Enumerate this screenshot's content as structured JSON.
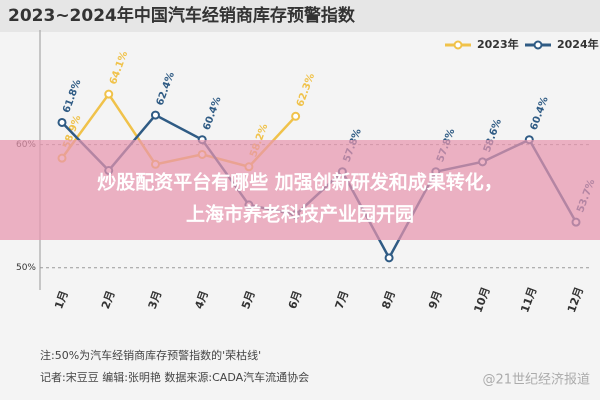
{
  "chart_data": {
    "type": "line",
    "title": "2023~2024年中国汽车经销商库存预警指数",
    "categories": [
      "1月",
      "2月",
      "3月",
      "4月",
      "5月",
      "6月",
      "7月",
      "8月",
      "9月",
      "10月",
      "11月",
      "12月"
    ],
    "series": [
      {
        "name": "2023年",
        "color": "#f0c24a",
        "values": [
          58.9,
          64.1,
          58.4,
          59.2,
          58.2,
          62.3,
          null,
          null,
          null,
          null,
          null,
          null
        ],
        "value_labels": [
          "58.9%",
          "64.1%",
          null,
          null,
          "58.2%",
          "62.3%",
          null,
          null,
          null,
          null,
          null,
          null
        ]
      },
      {
        "name": "2024年",
        "color": "#2f5b84",
        "values": [
          61.8,
          57.9,
          62.4,
          60.4,
          55.1,
          54.3,
          57.8,
          50.8,
          57.8,
          58.6,
          60.4,
          53.7
        ],
        "value_labels": [
          "61.8%",
          null,
          "62.4%",
          "60.4%",
          null,
          null,
          "57.8%",
          null,
          "57.8%",
          "58.6%",
          "60.4%",
          "53.7%"
        ]
      }
    ],
    "ylim": [
      49,
      68.5
    ],
    "yticks": [
      {
        "value": 50,
        "label": "50%"
      },
      {
        "value": 60,
        "label": "60%"
      }
    ],
    "legend": "top-right",
    "notes": [
      "注:50%为汽车经销商库存预警指数的'荣枯线'",
      "记者:宋豆豆  编辑:张明艳  数据来源:CADA汽车流通协会"
    ],
    "banner": [
      "炒股配资平台有哪些 加强创新研发和成果转化，",
      "上海市养老科技产业园开园"
    ],
    "watermark": "@21世纪经济报道"
  }
}
